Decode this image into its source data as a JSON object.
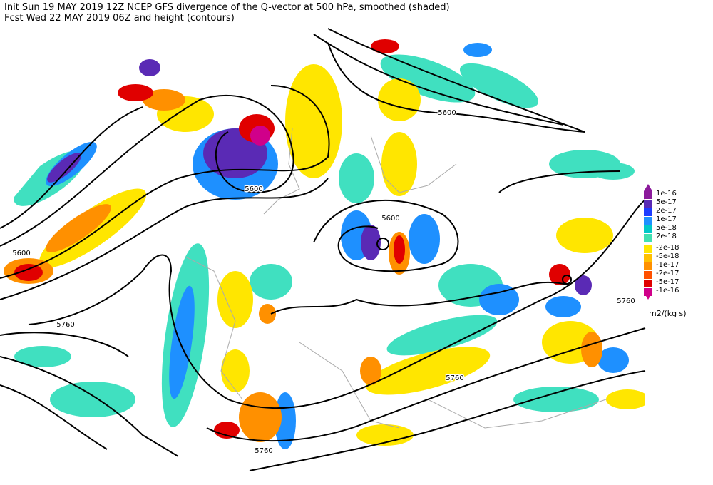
{
  "header": {
    "line1": "Init  Sun 19 MAY 2019 12Z  NCEP GFS divergence of the Q-vector at 500 hPa, smoothed (shaded)",
    "line2": "Fcst Wed 22 MAY 2019 06Z  and height (contours)"
  },
  "contour_labels": [
    "5600",
    "5600",
    "5600",
    "5600",
    "5760",
    "5760",
    "5760",
    "5760"
  ],
  "colorbar": {
    "labels": [
      "1e-16",
      "5e-17",
      "2e-17",
      "1e-17",
      "5e-18",
      "2e-18",
      "-2e-18",
      "-5e-18",
      "-1e-17",
      "-2e-17",
      "-5e-17",
      "-1e-16"
    ],
    "unit": "m2/(kg s)"
  }
}
